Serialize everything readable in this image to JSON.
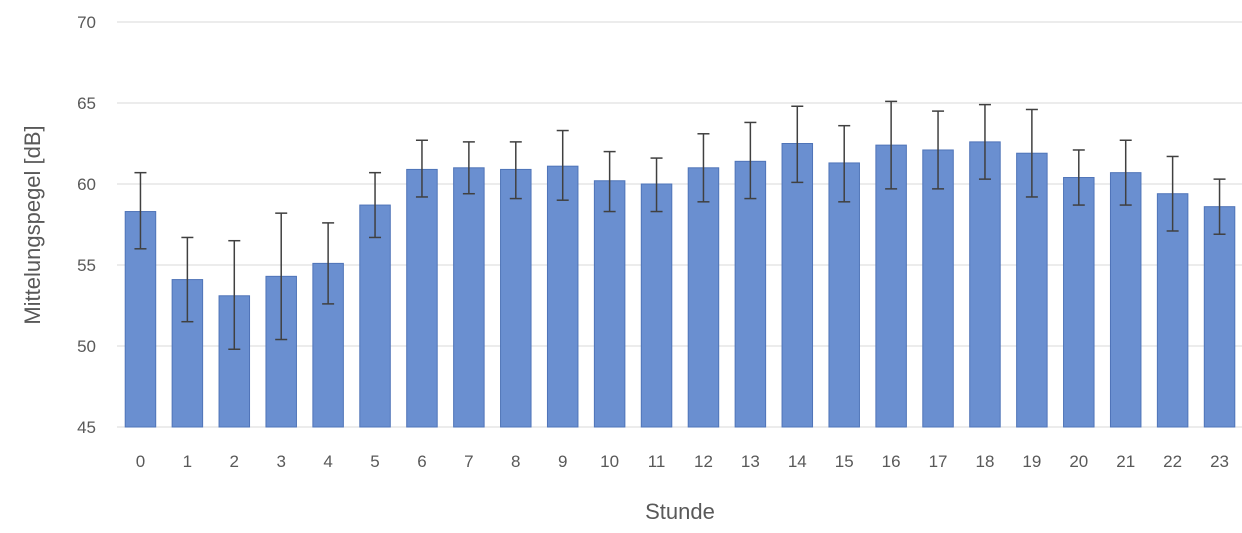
{
  "chart_data": {
    "type": "bar",
    "title": "",
    "xlabel": "Stunde",
    "ylabel": "Mittelungspegel [dB]",
    "ylim": [
      45,
      70
    ],
    "yticks": [
      45,
      50,
      55,
      60,
      65,
      70
    ],
    "grid": true,
    "legend": "none",
    "categories": [
      "0",
      "1",
      "2",
      "3",
      "4",
      "5",
      "6",
      "7",
      "8",
      "9",
      "10",
      "11",
      "12",
      "13",
      "14",
      "15",
      "16",
      "17",
      "18",
      "19",
      "20",
      "21",
      "22",
      "23"
    ],
    "series": [
      {
        "values": [
          58.3,
          54.1,
          53.1,
          54.3,
          55.1,
          58.7,
          60.9,
          61.0,
          60.9,
          61.1,
          60.2,
          60.0,
          61.0,
          61.4,
          62.5,
          61.3,
          62.4,
          62.1,
          62.6,
          61.9,
          60.4,
          60.7,
          59.4,
          58.6
        ],
        "error_low": [
          56.0,
          51.5,
          49.8,
          50.4,
          52.6,
          56.7,
          59.2,
          59.4,
          59.1,
          59.0,
          58.3,
          58.3,
          58.9,
          59.1,
          60.1,
          58.9,
          59.7,
          59.7,
          60.3,
          59.2,
          58.7,
          58.7,
          57.1,
          56.9
        ],
        "error_high": [
          60.7,
          56.7,
          56.5,
          58.2,
          57.6,
          60.7,
          62.7,
          62.6,
          62.6,
          63.3,
          62.0,
          61.6,
          63.1,
          63.8,
          64.8,
          63.6,
          65.1,
          64.5,
          64.9,
          64.6,
          62.1,
          62.7,
          61.7,
          60.3
        ]
      }
    ],
    "colors": {
      "bar_fill": "#6a8fd0",
      "bar_stroke": "#4f74b8",
      "error_bar": "#404040",
      "grid": "#d9d9d9",
      "text": "#595959"
    }
  }
}
